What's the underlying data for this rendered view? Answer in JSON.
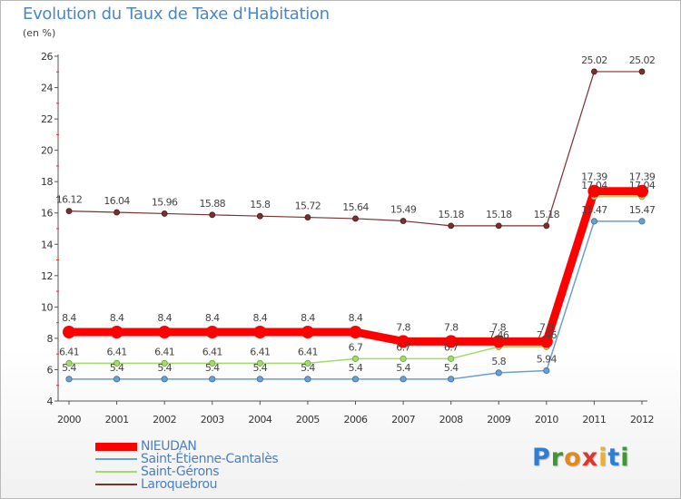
{
  "header": {
    "title": "Evolution du Taux de Taxe d'Habitation",
    "unit": "(en %)"
  },
  "logo": {
    "letters": [
      "P",
      "r",
      "o",
      "x",
      "i",
      "t",
      "i"
    ],
    "colors": [
      "#2d7fd6",
      "#3a9a2e",
      "#e08a1e",
      "#d93a2a",
      "#f0b020",
      "#2d7fd6",
      "#3a9a2e"
    ]
  },
  "chart_data": {
    "type": "line",
    "title": "Evolution du Taux de Taxe d'Habitation",
    "ylabel": "(en %)",
    "x": [
      "2000",
      "2001",
      "2002",
      "2003",
      "2004",
      "2005",
      "2006",
      "2007",
      "2008",
      "2009",
      "2010",
      "2011",
      "2012"
    ],
    "ylim": [
      4,
      26
    ],
    "yticks": [
      4,
      6,
      8,
      10,
      12,
      14,
      16,
      18,
      20,
      22,
      24,
      26
    ],
    "grid": false,
    "legend_position": "bottom-left",
    "series": [
      {
        "name": "NIEUDAN",
        "color": "#ff0000",
        "values": [
          8.4,
          8.4,
          8.4,
          8.4,
          8.4,
          8.4,
          8.4,
          7.8,
          7.8,
          7.8,
          7.8,
          17.39,
          17.39
        ],
        "labels": [
          "8.4",
          "8.4",
          "8.4",
          "8.4",
          "8.4",
          "8.4",
          "8.4",
          "7.8",
          "7.8",
          "7.8",
          "7.8",
          "17.39",
          "17.39"
        ]
      },
      {
        "name": "Saint-Étienne-Cantalès",
        "color": "#6a9fcf",
        "values": [
          5.4,
          5.4,
          5.4,
          5.4,
          5.4,
          5.4,
          5.4,
          5.4,
          5.4,
          5.8,
          5.94,
          15.47,
          15.47
        ],
        "labels": [
          "5.4",
          "5.4",
          "5.4",
          "5.4",
          "5.4",
          "5.4",
          "5.4",
          "5.4",
          "5.4",
          "5.8",
          "5.94",
          "15.47",
          "15.47"
        ]
      },
      {
        "name": "Saint-Gérons",
        "color": "#9fdc6a",
        "values": [
          6.41,
          6.41,
          6.41,
          6.41,
          6.41,
          6.41,
          6.7,
          6.7,
          6.7,
          7.46,
          7.46,
          17.04,
          17.04
        ],
        "labels": [
          "6.41",
          "6.41",
          "6.41",
          "6.41",
          "6.41",
          "6.41",
          "6.7",
          "6.7",
          "6.7",
          "7.46",
          "7.46",
          "17.04",
          "17.04"
        ]
      },
      {
        "name": "Laroquebrou",
        "color": "#7a3030",
        "values": [
          16.12,
          16.04,
          15.96,
          15.88,
          15.8,
          15.72,
          15.64,
          15.49,
          15.18,
          15.18,
          15.18,
          25.02,
          25.02
        ],
        "labels": [
          "16.12",
          "16.04",
          "15.96",
          "15.88",
          "15.8",
          "15.72",
          "15.64",
          "15.49",
          "15.18",
          "15.18",
          "15.18",
          "25.02",
          "25.02"
        ]
      }
    ]
  }
}
